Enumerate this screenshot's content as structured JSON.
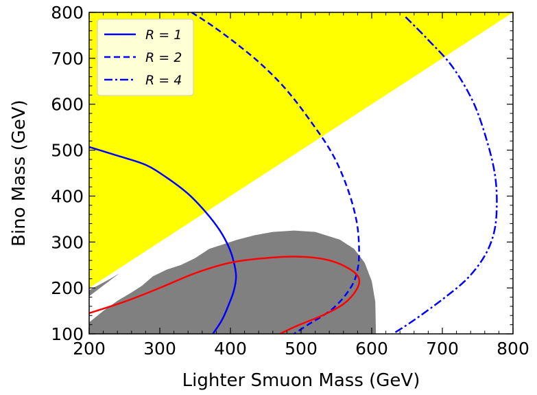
{
  "chart_data": {
    "type": "line",
    "xlabel": "Lighter Smuon Mass (GeV)",
    "ylabel": "Bino Mass (GeV)",
    "xlim": [
      200,
      800
    ],
    "ylim": [
      100,
      800
    ],
    "x_ticks": [
      "200",
      "300",
      "400",
      "500",
      "600",
      "700",
      "800"
    ],
    "y_ticks": [
      "100",
      "200",
      "300",
      "400",
      "500",
      "600",
      "700",
      "800"
    ],
    "legend_placement": "top-left",
    "regions": [
      {
        "id": "yellow-excluded",
        "color": "#ffff00",
        "points": [
          [
            200,
            800
          ],
          [
            800,
            800
          ],
          [
            800,
            800
          ],
          [
            200,
            200
          ]
        ]
      },
      {
        "id": "grey-excluded-main",
        "color": "#808080",
        "points": [
          [
            200,
            100
          ],
          [
            200,
            125
          ],
          [
            220,
            150
          ],
          [
            240,
            172
          ],
          [
            260,
            190
          ],
          [
            275,
            205
          ],
          [
            290,
            225
          ],
          [
            310,
            240
          ],
          [
            330,
            250
          ],
          [
            350,
            265
          ],
          [
            370,
            285
          ],
          [
            390,
            295
          ],
          [
            410,
            305
          ],
          [
            435,
            315
          ],
          [
            460,
            322
          ],
          [
            490,
            325
          ],
          [
            520,
            322
          ],
          [
            555,
            305
          ],
          [
            575,
            285
          ],
          [
            590,
            255
          ],
          [
            600,
            215
          ],
          [
            605,
            170
          ],
          [
            606,
            100
          ]
        ]
      },
      {
        "id": "grey-excluded-sliver",
        "color": "#808080",
        "points": [
          [
            200,
            182
          ],
          [
            243,
            232
          ],
          [
            230,
            220
          ],
          [
            200,
            195
          ]
        ]
      }
    ],
    "series": [
      {
        "name": "R = 1",
        "color": "#0000ff",
        "style": "solid",
        "points": [
          [
            200,
            507
          ],
          [
            240,
            488
          ],
          [
            280,
            468
          ],
          [
            310,
            440
          ],
          [
            340,
            405
          ],
          [
            365,
            365
          ],
          [
            385,
            325
          ],
          [
            398,
            288
          ],
          [
            405,
            255
          ],
          [
            408,
            225
          ],
          [
            405,
            195
          ],
          [
            398,
            165
          ],
          [
            388,
            130
          ],
          [
            375,
            100
          ]
        ]
      },
      {
        "name": "R = 2",
        "color": "#0000ff",
        "style": "dashed",
        "points": [
          [
            345,
            800
          ],
          [
            375,
            770
          ],
          [
            410,
            730
          ],
          [
            445,
            685
          ],
          [
            480,
            630
          ],
          [
            515,
            560
          ],
          [
            545,
            490
          ],
          [
            565,
            420
          ],
          [
            578,
            350
          ],
          [
            582,
            290
          ],
          [
            580,
            240
          ],
          [
            570,
            200
          ],
          [
            545,
            155
          ],
          [
            510,
            120
          ],
          [
            490,
            100
          ]
        ]
      },
      {
        "name": "R = 4",
        "color": "#0000ff",
        "style": "dashdot",
        "points": [
          [
            648,
            790
          ],
          [
            680,
            740
          ],
          [
            715,
            680
          ],
          [
            745,
            600
          ],
          [
            765,
            510
          ],
          [
            775,
            440
          ],
          [
            777,
            375
          ],
          [
            773,
            320
          ],
          [
            760,
            270
          ],
          [
            735,
            220
          ],
          [
            700,
            175
          ],
          [
            660,
            130
          ],
          [
            630,
            100
          ]
        ]
      },
      {
        "name": "",
        "color": "#ff0000",
        "style": "solid",
        "points": [
          [
            200,
            145
          ],
          [
            250,
            170
          ],
          [
            300,
            200
          ],
          [
            350,
            232
          ],
          [
            400,
            255
          ],
          [
            450,
            265
          ],
          [
            500,
            268
          ],
          [
            540,
            260
          ],
          [
            570,
            240
          ],
          [
            582,
            220
          ],
          [
            578,
            195
          ],
          [
            560,
            165
          ],
          [
            530,
            140
          ],
          [
            495,
            118
          ],
          [
            470,
            100
          ]
        ]
      }
    ]
  }
}
